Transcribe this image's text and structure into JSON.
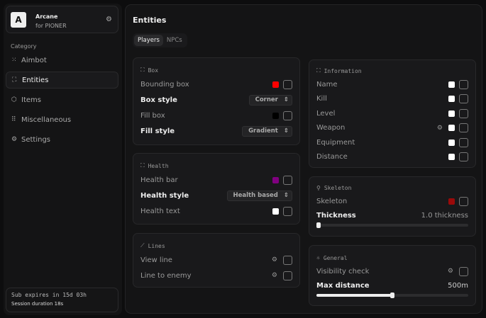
{
  "app": {
    "logo": "A",
    "title": "Arcane",
    "subtitle": "for PIONER"
  },
  "sidebar": {
    "category_label": "Category",
    "items": [
      {
        "label": "Aimbot",
        "icon": "crosshair-icon",
        "active": false
      },
      {
        "label": "Entities",
        "icon": "scan-icon",
        "active": true
      },
      {
        "label": "Items",
        "icon": "box-icon",
        "active": false
      },
      {
        "label": "Miscellaneous",
        "icon": "grid-icon",
        "active": false
      },
      {
        "label": "Settings",
        "icon": "gear-icon",
        "active": false
      }
    ],
    "sub_expires": "Sub expires in 15d 03h",
    "session": "Session duration 18s"
  },
  "main": {
    "title": "Entities",
    "tabs": [
      {
        "label": "Players",
        "active": true
      },
      {
        "label": "NPCs",
        "active": false
      }
    ]
  },
  "box": {
    "title": "Box",
    "bounding_box": {
      "label": "Bounding box",
      "color": "#ff0000",
      "checked": false
    },
    "box_style": {
      "label": "Box style",
      "value": "Corner"
    },
    "fill_box": {
      "label": "Fill box",
      "color": "#000000",
      "checked": false
    },
    "fill_style": {
      "label": "Fill style",
      "value": "Gradient"
    }
  },
  "health": {
    "title": "Health",
    "health_bar": {
      "label": "Health bar",
      "color": "#800080",
      "checked": false
    },
    "health_style": {
      "label": "Health style",
      "value": "Health based"
    },
    "health_text": {
      "label": "Health text",
      "color": "#ffffff",
      "checked": false
    }
  },
  "lines": {
    "title": "Lines",
    "view_line": {
      "label": "View line",
      "checked": false
    },
    "line_to_enemy": {
      "label": "Line to enemy",
      "checked": false
    }
  },
  "information": {
    "title": "Information",
    "items": [
      {
        "label": "Name",
        "color": "#ffffff",
        "gear": false
      },
      {
        "label": "Kill",
        "color": "#ffffff",
        "gear": false
      },
      {
        "label": "Level",
        "color": "#ffffff",
        "gear": false
      },
      {
        "label": "Weapon",
        "color": "#ffffff",
        "gear": true
      },
      {
        "label": "Equipment",
        "color": "#ffffff",
        "gear": false
      },
      {
        "label": "Distance",
        "color": "#ffffff",
        "gear": false
      }
    ]
  },
  "skeleton": {
    "title": "Skeleton",
    "skeleton": {
      "label": "Skeleton",
      "color": "#9b0a0a",
      "checked": false
    },
    "thickness": {
      "label": "Thickness",
      "value": "1.0 thickness",
      "fraction": 0
    }
  },
  "general": {
    "title": "General",
    "visibility": {
      "label": "Visibility check",
      "checked": false
    },
    "max_distance": {
      "label": "Max distance",
      "value": "500m",
      "fraction": 0.5
    }
  }
}
